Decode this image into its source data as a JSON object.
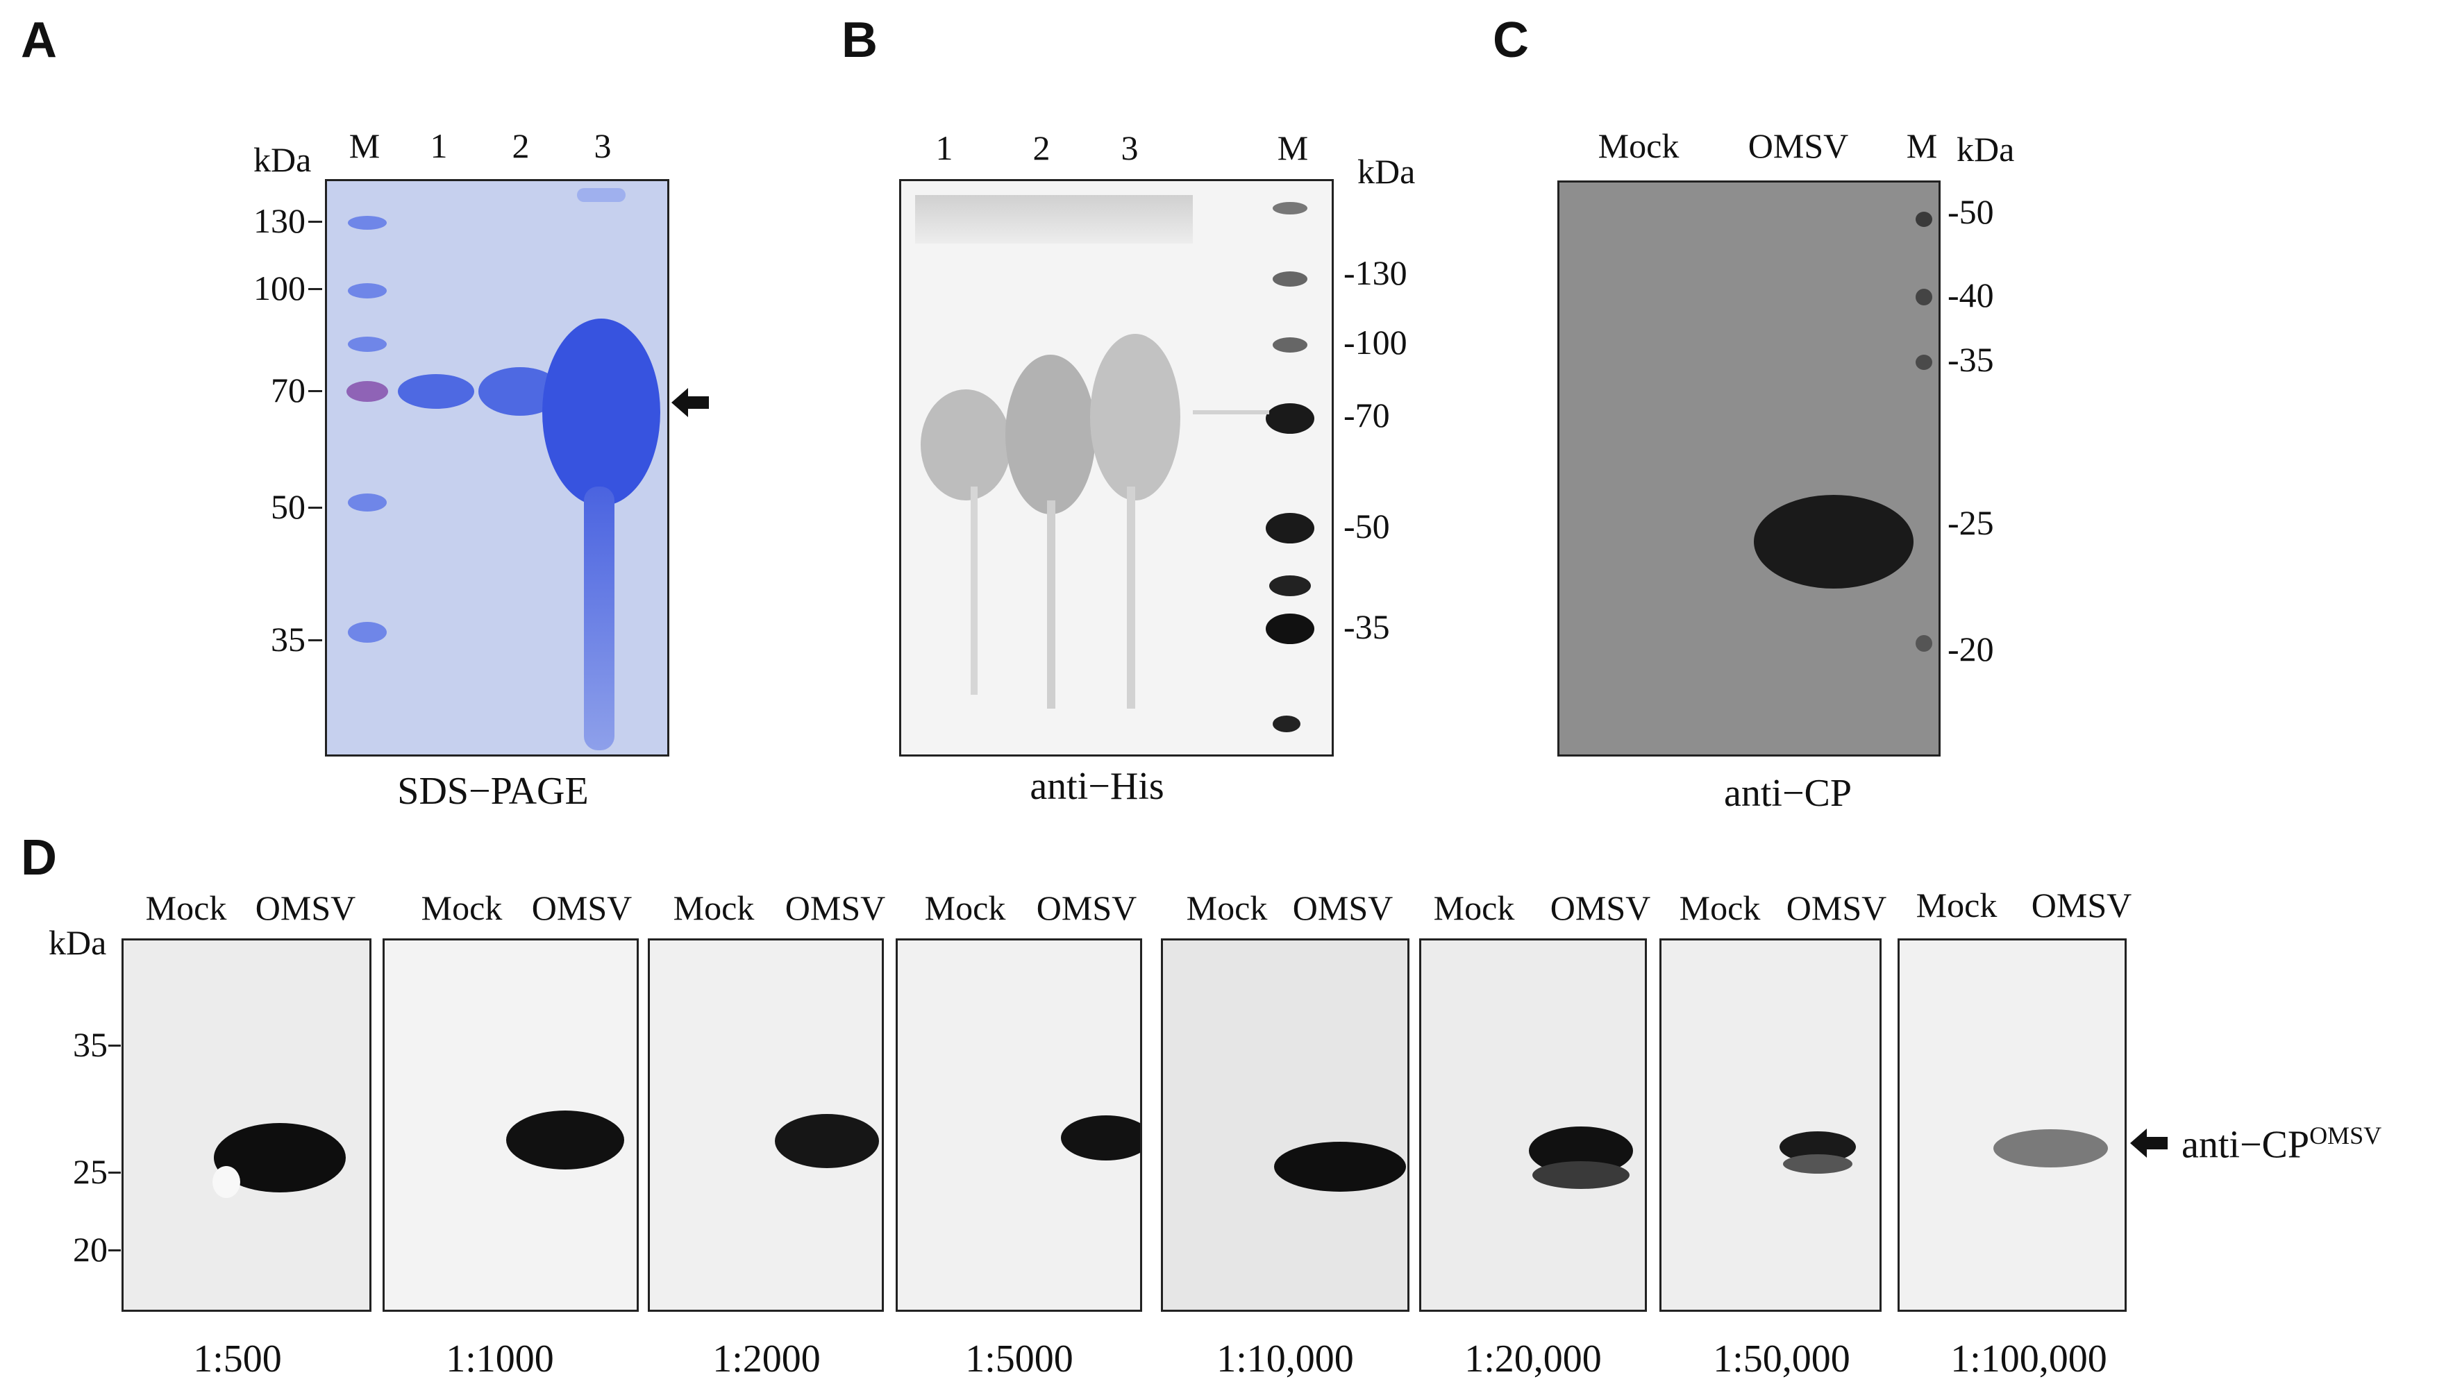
{
  "panels": {
    "A": {
      "letter": "A",
      "unit": "kDa",
      "lanes": [
        "M",
        "1",
        "2",
        "3"
      ],
      "markers": [
        "130",
        "100",
        "70",
        "50",
        "35"
      ],
      "caption": "SDS−PAGE"
    },
    "B": {
      "letter": "B",
      "unit": "kDa",
      "lanes": [
        "1",
        "2",
        "3",
        "M"
      ],
      "markers": [
        "-130",
        "-100",
        "-70",
        "-50",
        "-35"
      ],
      "caption": "anti−His"
    },
    "C": {
      "letter": "C",
      "unit": "kDa",
      "lanes": [
        "Mock",
        "OMSV",
        "M"
      ],
      "markers": [
        "-50",
        "-40",
        "-35",
        "-25",
        "-20"
      ],
      "caption": "anti−CP"
    },
    "D": {
      "letter": "D",
      "unit": "kDa",
      "markers": [
        "35",
        "25",
        "20"
      ],
      "lane_labels": [
        "Mock",
        "OMSV"
      ],
      "dilutions": [
        "1:500",
        "1:1000",
        "1:2000",
        "1:5000",
        "1:10,000",
        "1:20,000",
        "1:50,000",
        "1:100,000"
      ],
      "band_label": "anti−CP",
      "band_label_sup": "OMSV"
    }
  },
  "colors": {
    "coomassie_bg": "#c9d3ee",
    "coomassie_band": "#3b57e0",
    "blot_dark": "#0e0e0e",
    "panel_c_bg": "#8f8f8f"
  }
}
